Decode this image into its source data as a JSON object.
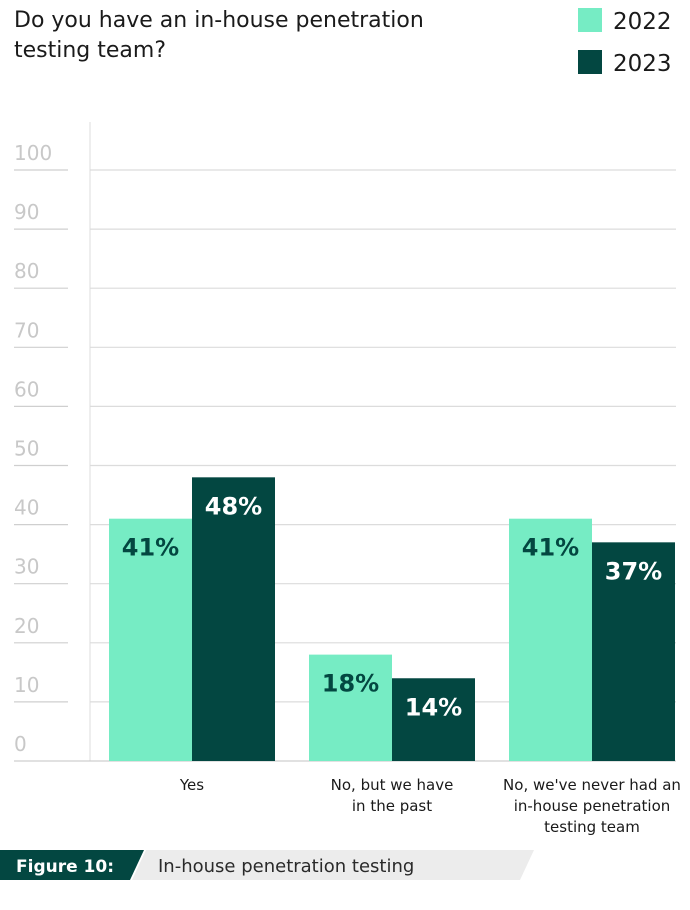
{
  "chart_data": {
    "type": "bar",
    "title_lines": [
      "Do you have an in-house penetration",
      "testing team?"
    ],
    "categories": [
      [
        "Yes"
      ],
      [
        "No, but we have",
        "in the past"
      ],
      [
        "No, we've never had an",
        "in-house penetration",
        "testing team"
      ]
    ],
    "series": [
      {
        "name": "2022",
        "values": [
          41,
          18,
          41
        ],
        "labels": [
          "41%",
          "18%",
          "41%"
        ],
        "color": "#76ecc4",
        "label_color": "#034741"
      },
      {
        "name": "2023",
        "values": [
          48,
          14,
          37
        ],
        "labels": [
          "48%",
          "14%",
          "37%"
        ],
        "color": "#034741",
        "label_color": "#ffffff"
      }
    ],
    "yticks": [
      "0",
      "10",
      "20",
      "30",
      "40",
      "50",
      "60",
      "70",
      "80",
      "90",
      "100"
    ],
    "ylim": [
      0,
      100
    ],
    "grid": true,
    "legend_position": "top-right"
  },
  "figure": {
    "number": "Figure 10:",
    "caption": "In-house penetration testing",
    "tag_color": "#034741",
    "caption_bg": "#ececec"
  }
}
